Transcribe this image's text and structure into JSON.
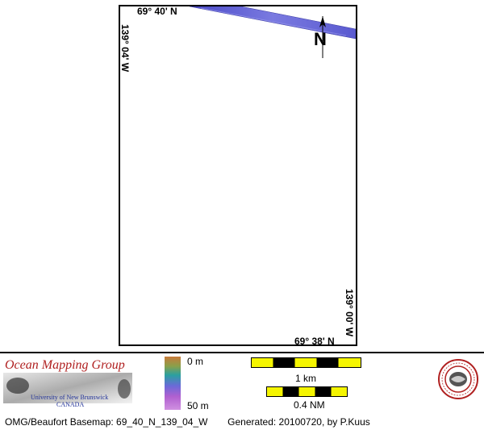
{
  "map": {
    "coords": {
      "top_lat": "69° 40' N",
      "bottom_lat": "69° 38' N",
      "left_lon": "139° 04' W",
      "right_lon": "139° 00' W"
    },
    "north_arrow_label": "N",
    "swath_color": "#5a5ad8"
  },
  "legend": {
    "logo": {
      "title": "Ocean Mapping Group",
      "university": "University of New Brunswick",
      "country": "CANADA",
      "title_color": "#b02020"
    },
    "depth_scale": {
      "top_label": "0 m",
      "bottom_label": "50 m"
    },
    "scale_bars": [
      {
        "label": "1 km"
      },
      {
        "label": "0.4 NM"
      }
    ],
    "scale_colors": [
      "#f5f500",
      "#000000"
    ],
    "seal_icon": "unb-seal-icon"
  },
  "footer": {
    "basemap": "OMG/Beaufort Basemap: 69_40_N_139_04_W",
    "generated": "Generated: 20100720, by P.Kuus"
  }
}
